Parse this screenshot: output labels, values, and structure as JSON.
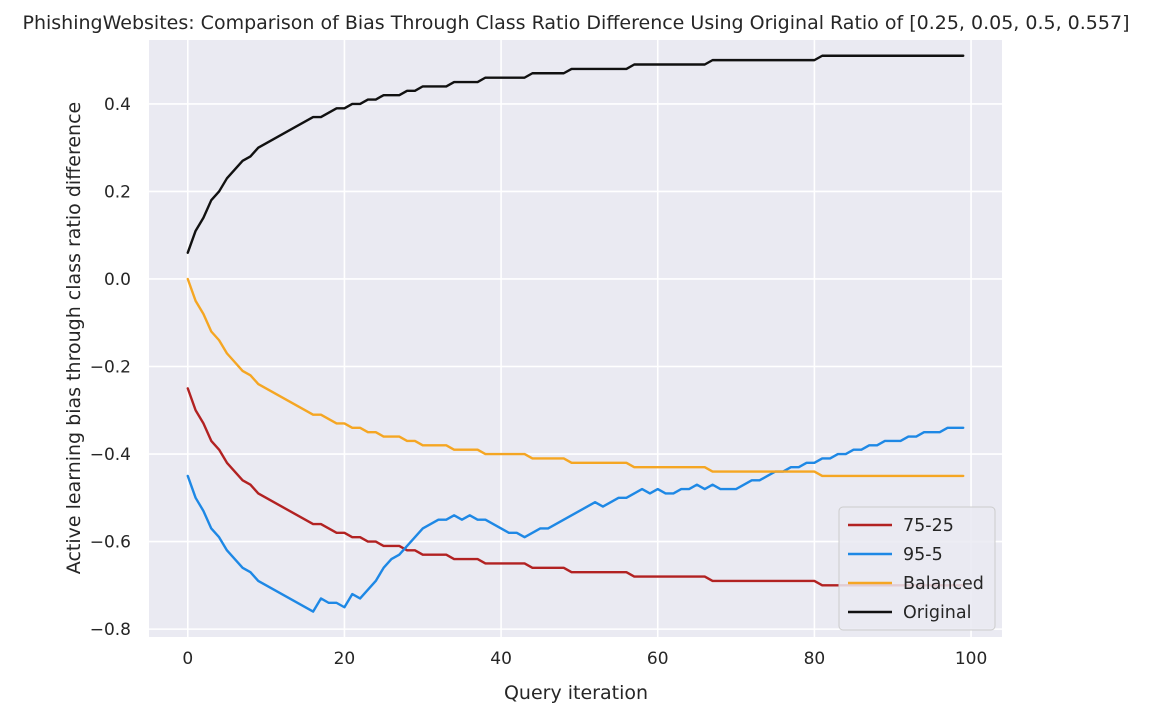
{
  "chart_data": {
    "type": "line",
    "title": "PhishingWebsites: Comparison of Bias Through Class Ratio Difference Using Original Ratio of [0.25, 0.05, 0.5, 0.557]",
    "xlabel": "Query iteration",
    "ylabel": "Active learning bias through class ratio difference",
    "xlim": [
      -4.95,
      103.95
    ],
    "ylim": [
      -0.818,
      0.546
    ],
    "xticks": [
      0,
      20,
      40,
      60,
      80,
      100
    ],
    "xtick_labels": [
      "0",
      "20",
      "40",
      "60",
      "80",
      "100"
    ],
    "yticks": [
      -0.8,
      -0.6,
      -0.4,
      -0.2,
      0.0,
      0.2,
      0.4
    ],
    "ytick_labels": [
      "−0.8",
      "−0.6",
      "−0.4",
      "−0.2",
      "0.0",
      "0.2",
      "0.4"
    ],
    "grid": true,
    "background": "#eaeaf2",
    "legend_position": "lower-right",
    "series": [
      {
        "name": "75-25",
        "color": "#b22222",
        "points": [
          [
            0,
            -0.25
          ],
          [
            1,
            -0.3
          ],
          [
            2,
            -0.33
          ],
          [
            3,
            -0.37
          ],
          [
            4,
            -0.39
          ],
          [
            5,
            -0.42
          ],
          [
            6,
            -0.44
          ],
          [
            7,
            -0.46
          ],
          [
            8,
            -0.47
          ],
          [
            9,
            -0.49
          ],
          [
            10,
            -0.5
          ],
          [
            16,
            -0.56
          ],
          [
            17,
            -0.56
          ],
          [
            19,
            -0.58
          ],
          [
            20,
            -0.58
          ],
          [
            21,
            -0.59
          ],
          [
            22,
            -0.59
          ],
          [
            23,
            -0.6
          ],
          [
            24,
            -0.6
          ],
          [
            25,
            -0.61
          ],
          [
            27,
            -0.61
          ],
          [
            28,
            -0.62
          ],
          [
            29,
            -0.62
          ],
          [
            30,
            -0.63
          ],
          [
            33,
            -0.63
          ],
          [
            34,
            -0.64
          ],
          [
            37,
            -0.64
          ],
          [
            38,
            -0.65
          ],
          [
            43,
            -0.65
          ],
          [
            44,
            -0.66
          ],
          [
            48,
            -0.66
          ],
          [
            49,
            -0.67
          ],
          [
            56,
            -0.67
          ],
          [
            57,
            -0.68
          ],
          [
            66,
            -0.68
          ],
          [
            67,
            -0.69
          ],
          [
            80,
            -0.69
          ],
          [
            81,
            -0.7
          ],
          [
            99,
            -0.7
          ]
        ]
      },
      {
        "name": "95-5",
        "color": "#1e88e5",
        "points": [
          [
            0,
            -0.45
          ],
          [
            1,
            -0.5
          ],
          [
            2,
            -0.53
          ],
          [
            3,
            -0.57
          ],
          [
            4,
            -0.59
          ],
          [
            5,
            -0.62
          ],
          [
            6,
            -0.64
          ],
          [
            7,
            -0.66
          ],
          [
            8,
            -0.67
          ],
          [
            9,
            -0.69
          ],
          [
            10,
            -0.7
          ],
          [
            16,
            -0.76
          ],
          [
            17,
            -0.73
          ],
          [
            18,
            -0.74
          ],
          [
            19,
            -0.74
          ],
          [
            20,
            -0.75
          ],
          [
            21,
            -0.72
          ],
          [
            22,
            -0.73
          ],
          [
            23,
            -0.71
          ],
          [
            24,
            -0.69
          ],
          [
            25,
            -0.66
          ],
          [
            26,
            -0.64
          ],
          [
            27,
            -0.63
          ],
          [
            28,
            -0.61
          ],
          [
            29,
            -0.59
          ],
          [
            30,
            -0.57
          ],
          [
            31,
            -0.56
          ],
          [
            32,
            -0.55
          ],
          [
            33,
            -0.55
          ],
          [
            34,
            -0.54
          ],
          [
            35,
            -0.55
          ],
          [
            36,
            -0.54
          ],
          [
            37,
            -0.55
          ],
          [
            38,
            -0.55
          ],
          [
            39,
            -0.56
          ],
          [
            40,
            -0.57
          ],
          [
            41,
            -0.58
          ],
          [
            42,
            -0.58
          ],
          [
            43,
            -0.59
          ],
          [
            44,
            -0.58
          ],
          [
            45,
            -0.57
          ],
          [
            46,
            -0.57
          ],
          [
            47,
            -0.56
          ],
          [
            48,
            -0.55
          ],
          [
            49,
            -0.54
          ],
          [
            50,
            -0.53
          ],
          [
            51,
            -0.52
          ],
          [
            52,
            -0.51
          ],
          [
            53,
            -0.52
          ],
          [
            54,
            -0.51
          ],
          [
            55,
            -0.5
          ],
          [
            56,
            -0.5
          ],
          [
            57,
            -0.49
          ],
          [
            58,
            -0.48
          ],
          [
            59,
            -0.49
          ],
          [
            60,
            -0.48
          ],
          [
            61,
            -0.49
          ],
          [
            62,
            -0.49
          ],
          [
            63,
            -0.48
          ],
          [
            64,
            -0.48
          ],
          [
            65,
            -0.47
          ],
          [
            66,
            -0.48
          ],
          [
            67,
            -0.47
          ],
          [
            68,
            -0.48
          ],
          [
            69,
            -0.48
          ],
          [
            70,
            -0.48
          ],
          [
            71,
            -0.47
          ],
          [
            72,
            -0.46
          ],
          [
            73,
            -0.46
          ],
          [
            74,
            -0.45
          ],
          [
            75,
            -0.44
          ],
          [
            76,
            -0.44
          ],
          [
            77,
            -0.43
          ],
          [
            78,
            -0.43
          ],
          [
            79,
            -0.42
          ],
          [
            80,
            -0.42
          ],
          [
            81,
            -0.41
          ],
          [
            82,
            -0.41
          ],
          [
            83,
            -0.4
          ],
          [
            84,
            -0.4
          ],
          [
            85,
            -0.39
          ],
          [
            86,
            -0.39
          ],
          [
            87,
            -0.38
          ],
          [
            88,
            -0.38
          ],
          [
            89,
            -0.37
          ],
          [
            90,
            -0.37
          ],
          [
            91,
            -0.37
          ],
          [
            92,
            -0.36
          ],
          [
            93,
            -0.36
          ],
          [
            94,
            -0.35
          ],
          [
            95,
            -0.35
          ],
          [
            96,
            -0.35
          ],
          [
            97,
            -0.34
          ],
          [
            98,
            -0.34
          ],
          [
            99,
            -0.34
          ]
        ]
      },
      {
        "name": "Balanced",
        "color": "#f5a623",
        "points": [
          [
            0,
            0.0
          ],
          [
            1,
            -0.05
          ],
          [
            2,
            -0.08
          ],
          [
            3,
            -0.12
          ],
          [
            4,
            -0.14
          ],
          [
            5,
            -0.17
          ],
          [
            6,
            -0.19
          ],
          [
            7,
            -0.21
          ],
          [
            8,
            -0.22
          ],
          [
            9,
            -0.24
          ],
          [
            10,
            -0.25
          ],
          [
            16,
            -0.31
          ],
          [
            17,
            -0.31
          ],
          [
            19,
            -0.33
          ],
          [
            20,
            -0.33
          ],
          [
            21,
            -0.34
          ],
          [
            22,
            -0.34
          ],
          [
            23,
            -0.35
          ],
          [
            24,
            -0.35
          ],
          [
            25,
            -0.36
          ],
          [
            27,
            -0.36
          ],
          [
            28,
            -0.37
          ],
          [
            29,
            -0.37
          ],
          [
            30,
            -0.38
          ],
          [
            33,
            -0.38
          ],
          [
            34,
            -0.39
          ],
          [
            37,
            -0.39
          ],
          [
            38,
            -0.4
          ],
          [
            43,
            -0.4
          ],
          [
            44,
            -0.41
          ],
          [
            48,
            -0.41
          ],
          [
            49,
            -0.42
          ],
          [
            56,
            -0.42
          ],
          [
            57,
            -0.43
          ],
          [
            66,
            -0.43
          ],
          [
            67,
            -0.44
          ],
          [
            80,
            -0.44
          ],
          [
            81,
            -0.45
          ],
          [
            99,
            -0.45
          ]
        ]
      },
      {
        "name": "Original",
        "color": "#111111",
        "points": [
          [
            0,
            0.06
          ],
          [
            1,
            0.11
          ],
          [
            2,
            0.14
          ],
          [
            3,
            0.18
          ],
          [
            4,
            0.2
          ],
          [
            5,
            0.23
          ],
          [
            6,
            0.25
          ],
          [
            7,
            0.27
          ],
          [
            8,
            0.28
          ],
          [
            9,
            0.3
          ],
          [
            10,
            0.31
          ],
          [
            16,
            0.37
          ],
          [
            17,
            0.37
          ],
          [
            19,
            0.39
          ],
          [
            20,
            0.39
          ],
          [
            21,
            0.4
          ],
          [
            22,
            0.4
          ],
          [
            23,
            0.41
          ],
          [
            24,
            0.41
          ],
          [
            25,
            0.42
          ],
          [
            27,
            0.42
          ],
          [
            28,
            0.43
          ],
          [
            29,
            0.43
          ],
          [
            30,
            0.44
          ],
          [
            33,
            0.44
          ],
          [
            34,
            0.45
          ],
          [
            37,
            0.45
          ],
          [
            38,
            0.46
          ],
          [
            43,
            0.46
          ],
          [
            44,
            0.47
          ],
          [
            48,
            0.47
          ],
          [
            49,
            0.48
          ],
          [
            56,
            0.48
          ],
          [
            57,
            0.49
          ],
          [
            66,
            0.49
          ],
          [
            67,
            0.5
          ],
          [
            80,
            0.5
          ],
          [
            81,
            0.51
          ],
          [
            99,
            0.51
          ]
        ]
      }
    ]
  }
}
